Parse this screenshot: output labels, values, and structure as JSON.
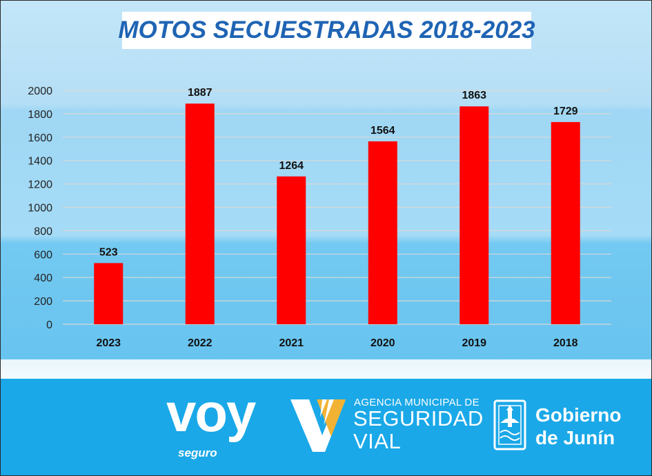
{
  "chart_data": {
    "type": "bar",
    "title": "MOTOS SECUESTRADAS 2018-2023",
    "categories": [
      "2023",
      "2022",
      "2021",
      "2020",
      "2019",
      "2018"
    ],
    "values": [
      523,
      1887,
      1264,
      1564,
      1863,
      1729
    ],
    "ylim": [
      0,
      2000
    ],
    "yticks": [
      0,
      200,
      400,
      600,
      800,
      1000,
      1200,
      1400,
      1600,
      1800,
      2000
    ],
    "grid": true,
    "legend": "none",
    "bar_color": "#ff0000",
    "data_labels": true
  },
  "colors": {
    "title": "#1f64b4",
    "footer": "#1aa8e8",
    "gold": "#f2b233",
    "gridline": "#d8d8d8"
  },
  "logos": {
    "voy": {
      "word": "voy",
      "sub": "seguro",
      "icon": "pedestrian-icon"
    },
    "agency": {
      "line1": "AGENCIA MUNICIPAL DE",
      "line2": "SEGURIDAD",
      "line3": "VIAL",
      "icon": "v-chevron-icon"
    },
    "gobierno": {
      "line1": "Gobierno",
      "line2": "de Junín",
      "icon": "city-shield-icon"
    }
  }
}
